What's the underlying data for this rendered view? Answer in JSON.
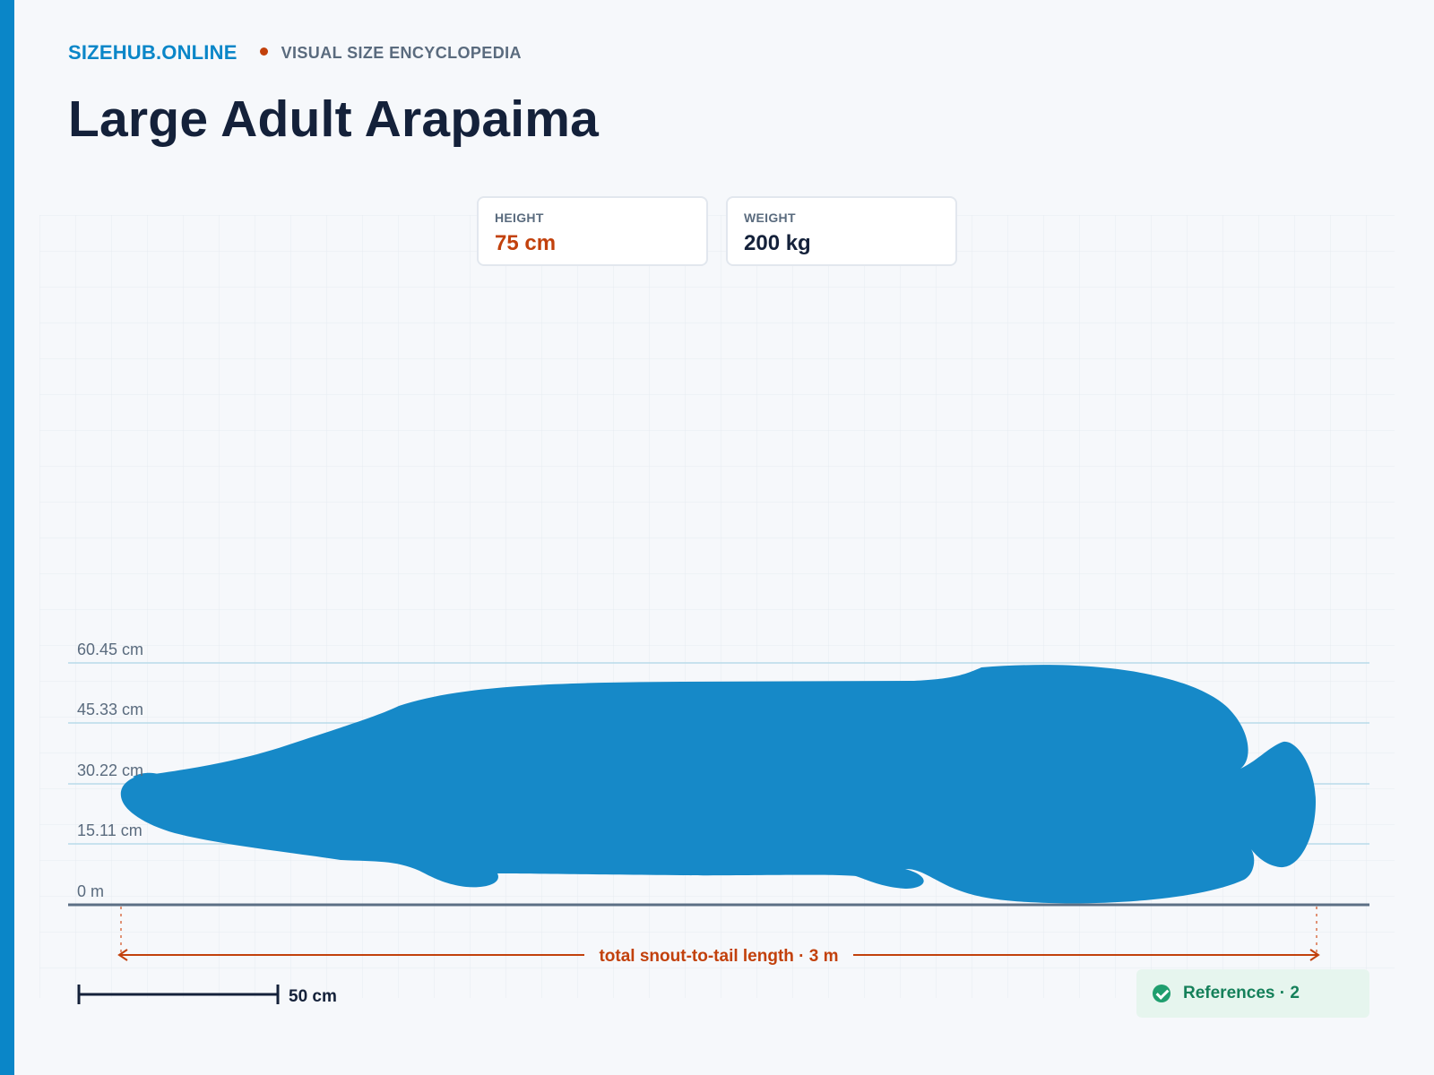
{
  "header": {
    "brand": "SIZEHUB.ONLINE",
    "tagline": "VISUAL SIZE ENCYCLOPEDIA",
    "title": "Large Adult Arapaima"
  },
  "stats": [
    {
      "label": "HEIGHT",
      "value": "75 cm"
    },
    {
      "label": "WEIGHT",
      "value": "200 kg"
    }
  ],
  "ruler": {
    "levels": [
      "60.45 cm",
      "45.33 cm",
      "30.22 cm",
      "15.11 cm",
      "0 m"
    ]
  },
  "length_label": "total snout-to-tail length · 3 m",
  "scale_bar_label": "50 cm",
  "references_label": "References · 2",
  "colors": {
    "accent": "#0a86c8",
    "silhouette": "#1689c8",
    "highlight": "#c2410c",
    "success": "#1f9e6e"
  },
  "icons": {
    "references": "check-circle-icon"
  }
}
